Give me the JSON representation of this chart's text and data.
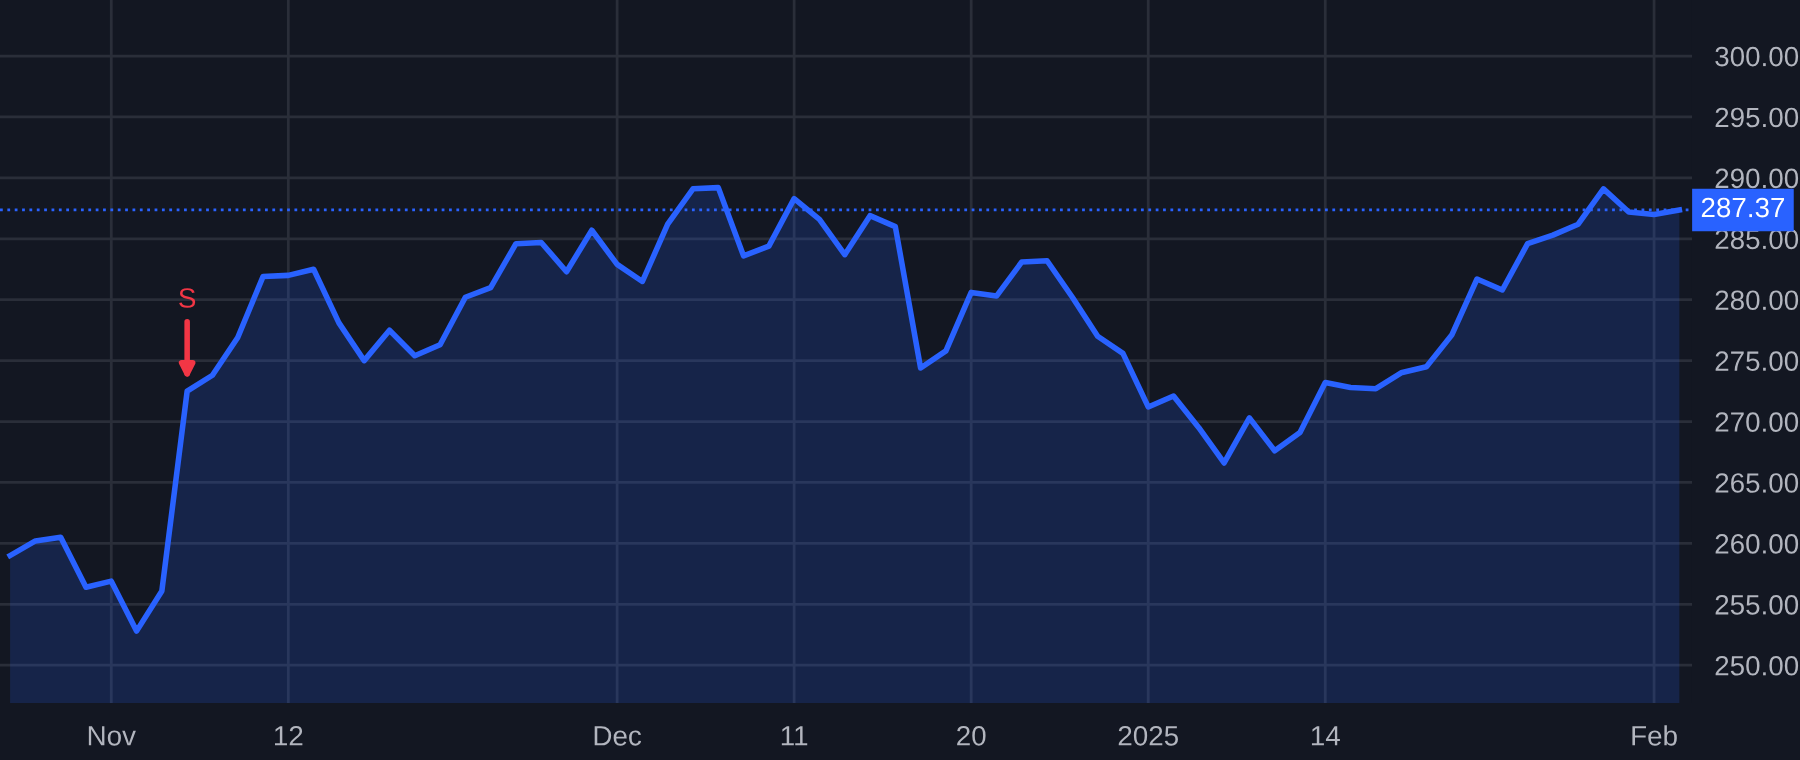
{
  "chart_data": {
    "type": "area",
    "categories": [
      null,
      null,
      null,
      null,
      "Nov",
      null,
      null,
      null,
      null,
      null,
      null,
      "12",
      null,
      null,
      null,
      null,
      null,
      null,
      null,
      null,
      null,
      null,
      null,
      null,
      "Dec",
      null,
      null,
      null,
      null,
      null,
      null,
      "11",
      null,
      null,
      null,
      null,
      null,
      null,
      "20",
      null,
      null,
      null,
      null,
      null,
      null,
      "2025",
      null,
      null,
      null,
      null,
      null,
      null,
      "14",
      null,
      null,
      null,
      null,
      null,
      null,
      null,
      null,
      null,
      null,
      null,
      null,
      "Feb",
      null
    ],
    "series": [
      {
        "color": "#2962ff",
        "values": [
          259.0,
          260.2,
          260.5,
          256.4,
          256.9,
          252.8,
          256.1,
          272.5,
          273.8,
          276.9,
          281.9,
          282.0,
          282.5,
          278.1,
          275.0,
          277.5,
          275.4,
          276.3,
          280.2,
          281.0,
          284.6,
          284.7,
          282.3,
          285.7,
          282.9,
          281.5,
          286.2,
          289.1,
          289.2,
          283.6,
          284.4,
          288.3,
          286.6,
          283.7,
          286.9,
          286.0,
          274.4,
          275.8,
          280.6,
          280.3,
          283.1,
          283.2,
          280.2,
          277.0,
          275.6,
          271.2,
          272.1,
          269.5,
          266.6,
          270.3,
          267.6,
          269.1,
          273.2,
          272.8,
          272.7,
          274.0,
          274.5,
          277.1,
          281.7,
          280.8,
          284.6,
          285.3,
          286.2,
          289.1,
          287.2,
          287.0,
          287.37
        ]
      }
    ],
    "ylim": [
      246.9,
      304.6
    ],
    "yticks": [
      {
        "value": 250,
        "label": "250.00"
      },
      {
        "value": 255,
        "label": "255.00"
      },
      {
        "value": 260,
        "label": "260.00"
      },
      {
        "value": 265,
        "label": "265.00"
      },
      {
        "value": 270,
        "label": "270.00"
      },
      {
        "value": 275,
        "label": "275.00"
      },
      {
        "value": 280,
        "label": "280.00"
      },
      {
        "value": 285,
        "label": "285.00"
      },
      {
        "value": 290,
        "label": "290.00"
      },
      {
        "value": 295,
        "label": "295.00"
      },
      {
        "value": 300,
        "label": "300.00"
      }
    ],
    "ref_lines": [
      {
        "axis": "y",
        "value": 287.37,
        "label": "287.37",
        "color": "#2962ff",
        "line_style": "dotted"
      }
    ],
    "annotations": [
      {
        "text": "S",
        "y": 272.5
      }
    ],
    "grid": true
  }
}
